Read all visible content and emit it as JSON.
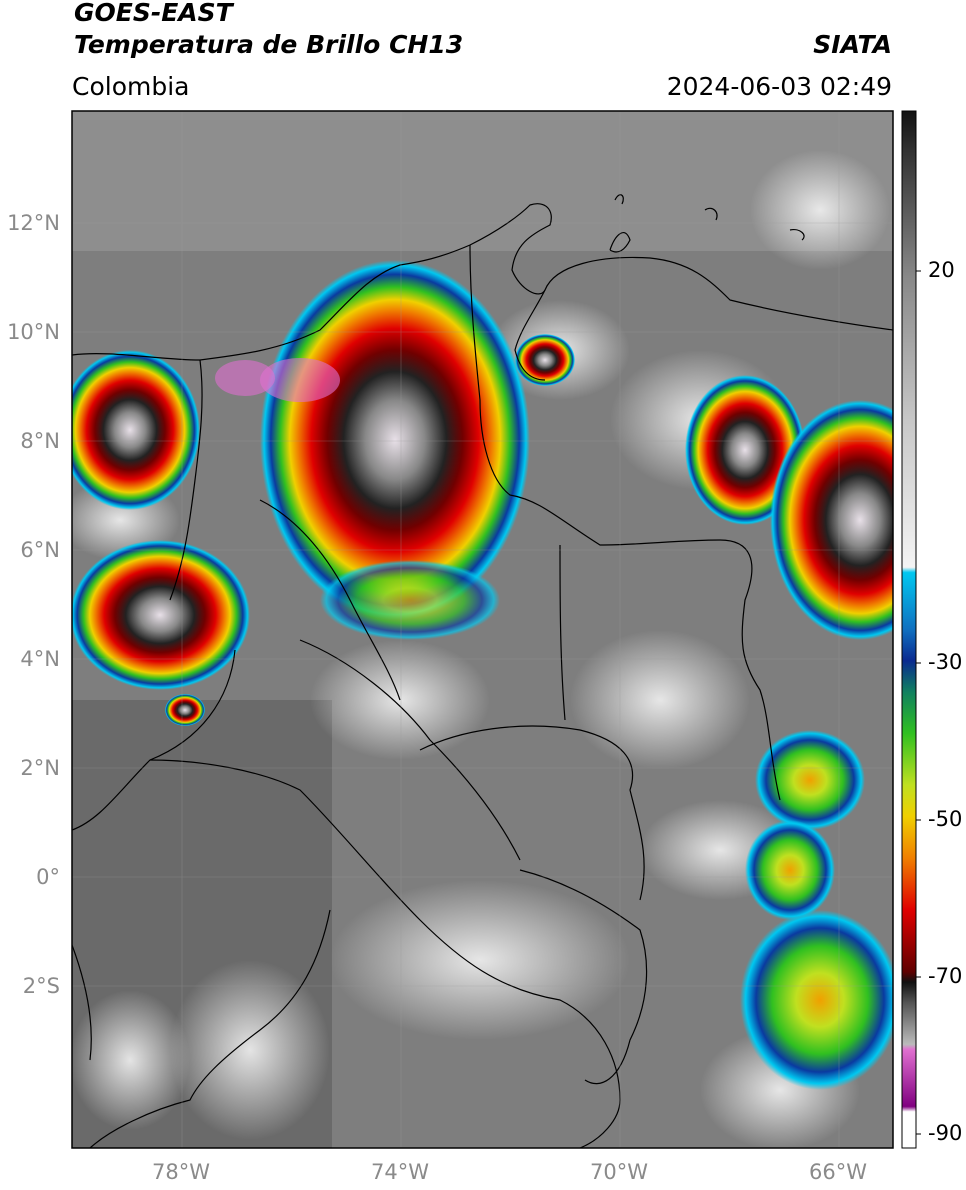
{
  "header": {
    "line1": "GOES-EAST",
    "line2": "Temperatura de Brillo CH13",
    "brand": "SIATA",
    "region": "Colombia",
    "datetime": "2024-06-03 02:49"
  },
  "axes": {
    "lat_ticks": [
      "12°N",
      "10°N",
      "8°N",
      "6°N",
      "4°N",
      "2°N",
      "0°",
      "2°S"
    ],
    "lon_ticks": [
      "78°W",
      "74°W",
      "70°W",
      "66°W"
    ]
  },
  "colorbar": {
    "ticks": [
      "20",
      "-30",
      "-50",
      "-70",
      "-90"
    ],
    "colors": {
      "black": "#111111",
      "dark_gray": "#3a3a3a",
      "gray": "#8a8a8a",
      "light_gray": "#dcdcdc",
      "white": "#f4f4f4",
      "cyan": "#00c8f0",
      "blue": "#0a3aa0",
      "navy": "#102070",
      "green": "#2ec820",
      "yellow": "#f0d000",
      "orange": "#f08000",
      "red": "#e00000",
      "dark_red": "#600000",
      "pink": "#e070d0",
      "purple": "#800080"
    }
  },
  "features": {
    "storms": [
      "northern-colombia-mcs",
      "pacific-coast-storm",
      "venezuela-storm",
      "eastern-convection"
    ],
    "borders": [
      "colombia-departments",
      "venezuela",
      "ecuador",
      "peru",
      "brazil",
      "panama"
    ]
  }
}
